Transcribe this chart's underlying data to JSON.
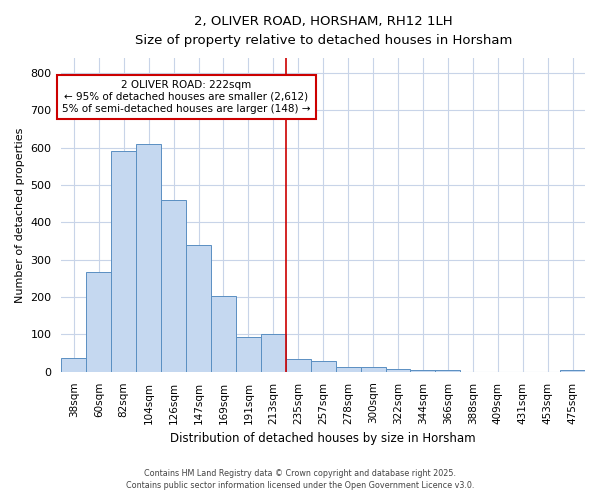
{
  "title": "2, OLIVER ROAD, HORSHAM, RH12 1LH",
  "subtitle": "Size of property relative to detached houses in Horsham",
  "xlabel": "Distribution of detached houses by size in Horsham",
  "ylabel": "Number of detached properties",
  "bar_labels": [
    "38sqm",
    "60sqm",
    "82sqm",
    "104sqm",
    "126sqm",
    "147sqm",
    "169sqm",
    "191sqm",
    "213sqm",
    "235sqm",
    "257sqm",
    "278sqm",
    "300sqm",
    "322sqm",
    "344sqm",
    "366sqm",
    "388sqm",
    "409sqm",
    "431sqm",
    "453sqm",
    "475sqm"
  ],
  "bar_values": [
    38,
    268,
    590,
    610,
    460,
    340,
    203,
    93,
    100,
    35,
    30,
    13,
    13,
    8,
    5,
    4,
    0,
    0,
    0,
    0,
    5
  ],
  "bar_color": "#c5d8f0",
  "bar_edge_color": "#5a8fc2",
  "background_color": "#ffffff",
  "grid_color": "#c8d4e8",
  "red_line_x": 8.5,
  "annotation_text": "2 OLIVER ROAD: 222sqm\n← 95% of detached houses are smaller (2,612)\n5% of semi-detached houses are larger (148) →",
  "annotation_box_color": "#ffffff",
  "annotation_box_edge_color": "#cc0000",
  "red_line_color": "#cc0000",
  "ylim": [
    0,
    840
  ],
  "yticks": [
    0,
    100,
    200,
    300,
    400,
    500,
    600,
    700,
    800
  ],
  "footer_line1": "Contains HM Land Registry data © Crown copyright and database right 2025.",
  "footer_line2": "Contains public sector information licensed under the Open Government Licence v3.0."
}
